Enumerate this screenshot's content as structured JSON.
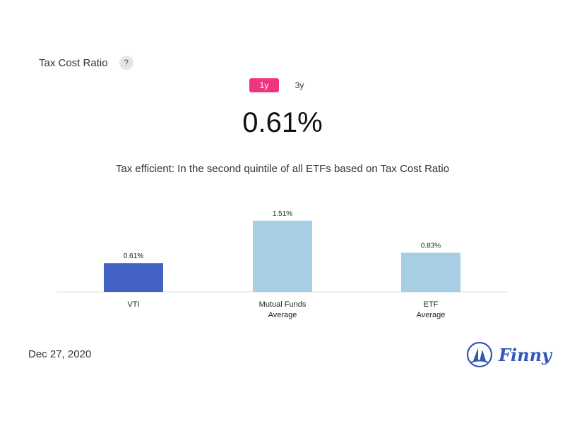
{
  "header": {
    "title": "Tax Cost Ratio",
    "help_label": "?"
  },
  "tabs": [
    {
      "label": "1y",
      "active": true
    },
    {
      "label": "3y",
      "active": false
    }
  ],
  "summary": {
    "value": "0.61%",
    "description": "Tax efficient: In the second quintile of all ETFs based on Tax Cost Ratio"
  },
  "colors": {
    "accent": "#f0347e",
    "primary_bar": "#4262c5",
    "secondary_bar": "#a6cfe6",
    "axis": "#dddddd",
    "brand": "#2f58b8"
  },
  "chart_data": {
    "type": "bar",
    "categories": [
      [
        "VTI"
      ],
      [
        "Mutual Funds",
        "Average"
      ],
      [
        "ETF",
        "Average"
      ]
    ],
    "values": [
      0.61,
      1.51,
      0.83
    ],
    "value_labels": [
      "0.61%",
      "1.51%",
      "0.83%"
    ],
    "ylim": [
      0,
      1.51
    ],
    "highlight_index": 0,
    "grid": false
  },
  "footer": {
    "date": "Dec 27, 2020",
    "brand_name": "Finny",
    "brand_icon": "sailboat-logo-icon"
  }
}
